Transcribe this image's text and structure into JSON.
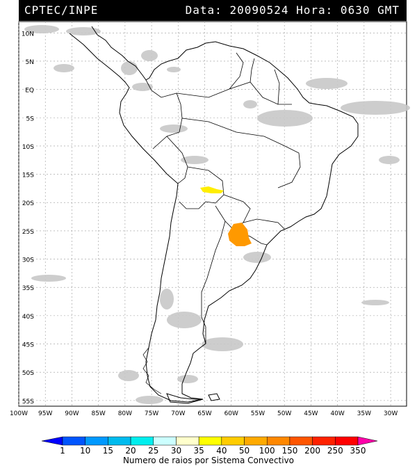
{
  "header": {
    "left": "CPTEC/INPE",
    "right": "Data: 20090524 Hora: 0630 GMT"
  },
  "map": {
    "lat_ticks": [
      "10N",
      "5N",
      "EQ",
      "5S",
      "10S",
      "15S",
      "20S",
      "25S",
      "30S",
      "35S",
      "40S",
      "45S",
      "50S",
      "55S"
    ],
    "lon_ticks": [
      "100W",
      "95W",
      "90W",
      "85W",
      "80W",
      "75W",
      "70W",
      "65W",
      "60W",
      "55W",
      "50W",
      "45W",
      "40W",
      "35W",
      "30W"
    ],
    "lat_values": [
      10,
      5,
      0,
      -5,
      -10,
      -15,
      -20,
      -25,
      -30,
      -35,
      -40,
      -45,
      -50,
      -55
    ],
    "lon_values": [
      -100,
      -95,
      -90,
      -85,
      -80,
      -75,
      -70,
      -65,
      -60,
      -55,
      -50,
      -45,
      -40,
      -35,
      -30
    ],
    "extent": {
      "lon_min": -100,
      "lon_max": -27,
      "lat_min": -56,
      "lat_max": 12
    },
    "colors": {
      "land_outline": "#000000",
      "grid": "#999999",
      "clouds": "#c8c8c8",
      "yellow_system": "#ffee00",
      "orange_system": "#ff9900"
    }
  },
  "legend": {
    "values": [
      "1",
      "10",
      "15",
      "20",
      "25",
      "30",
      "35",
      "40",
      "50",
      "100",
      "150",
      "200",
      "250",
      "350"
    ],
    "colors": [
      "#0000ff",
      "#0055ff",
      "#0099ff",
      "#00bbee",
      "#00eeee",
      "#ccffff",
      "#ffffcc",
      "#ffff00",
      "#ffcc00",
      "#ffaa00",
      "#ff8800",
      "#ff5500",
      "#ff2200",
      "#ff0000",
      "#ff00aa"
    ],
    "title": "Numero de raios por Sistema Convectivo"
  }
}
